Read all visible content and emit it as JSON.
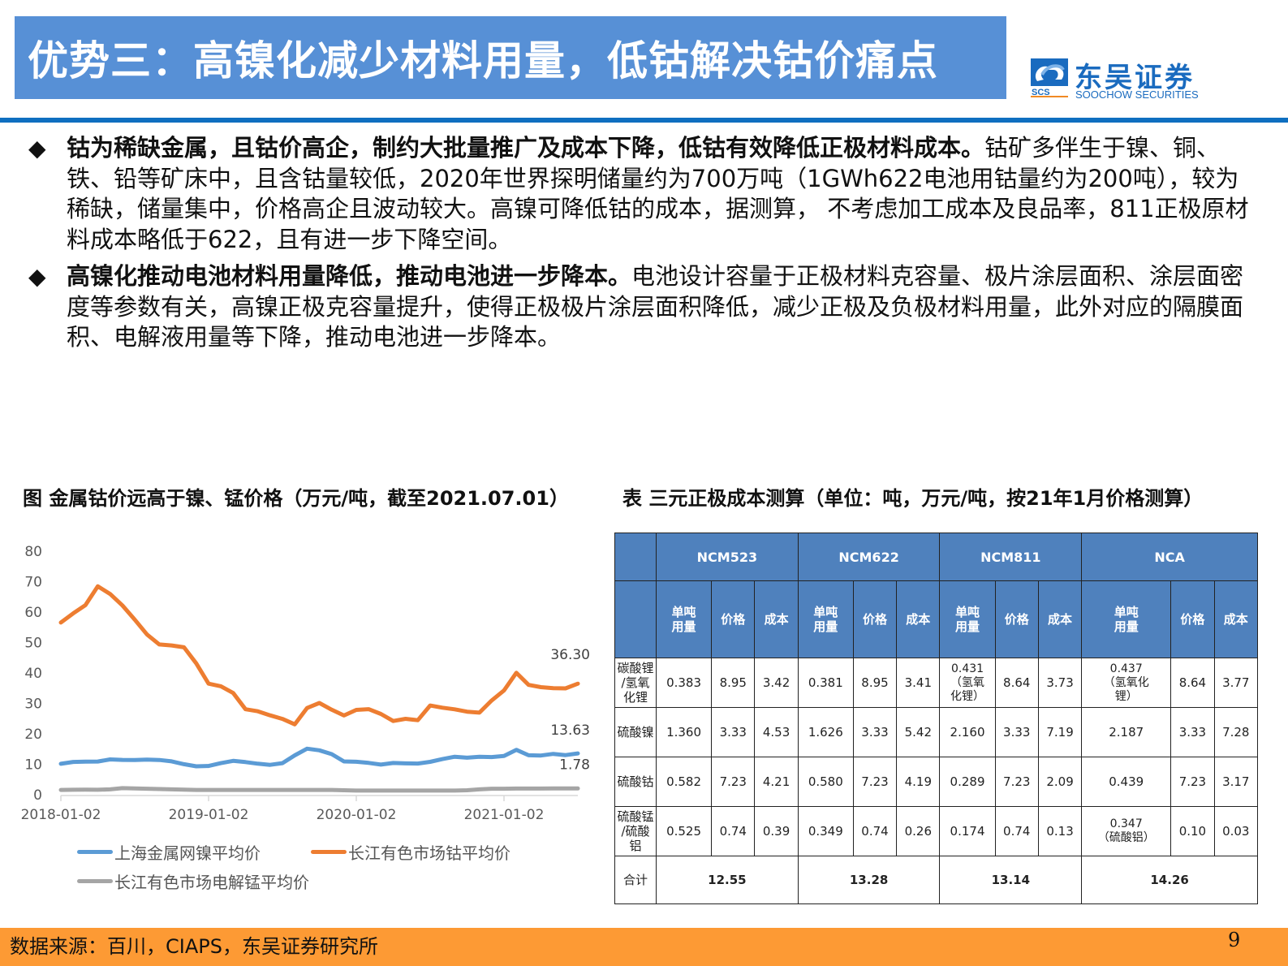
{
  "header": {
    "title": "优势三：高镍化减少材料用量，低钴解决钴价痛点",
    "logo": {
      "cn": "东吴证券",
      "en": "SOOCHOW SECURITIES",
      "mark": "SCS",
      "icon": "soochow-logo-icon"
    }
  },
  "bullets": [
    {
      "icon": "diamond-bullet-icon",
      "bold": "钴为稀缺金属，且钴价高企，制约大批量推广及成本下降，低钴有效降低正极材料成本。",
      "text": "钴矿多伴生于镍、铜、铁、铅等矿床中，且含钴量较低，2020年世界探明储量约为700万吨（1GWh622电池用钴量约为200吨），较为稀缺，储量集中，价格高企且波动较大。高镍可降低钴的成本，据测算， 不考虑加工成本及良品率，811正极原材料成本略低于622，且有进一步下降空间。"
    },
    {
      "icon": "diamond-bullet-icon",
      "bold": "高镍化推动电池材料用量降低，推动电池进一步降本。",
      "text": "电池设计容量于正极材料克容量、极片涂层面积、涂层面密度等参数有关，高镍正极克容量提升，使得正极极片涂层面积降低，减少正极及负极材料用量，此外对应的隔膜面积、电解液用量等下降，推动电池进一步降本。"
    }
  ],
  "figure_caption": "图  金属钴价远高于镍、锰价格（万元/吨，截至2021.07.01）",
  "table_caption": "表 三元正极成本测算（单位：吨，万元/吨，按21年1月价格测算）",
  "chart_data": {
    "type": "line",
    "title": "金属钴价远高于镍、锰价格（万元/吨，截至2021.07.01）",
    "xlabel": "",
    "ylabel": "",
    "ylim": [
      0,
      80
    ],
    "yticks": [
      "0",
      "10",
      "20",
      "30",
      "40",
      "50",
      "60",
      "70",
      "80"
    ],
    "xticks": [
      "2018-01-02",
      "2019-01-02",
      "2020-01-02",
      "2021-01-02"
    ],
    "grid": false,
    "legend_position": "bottom",
    "x": [
      "2018-01",
      "2018-02",
      "2018-03",
      "2018-04",
      "2018-05",
      "2018-06",
      "2018-07",
      "2018-08",
      "2018-09",
      "2018-10",
      "2018-11",
      "2018-12",
      "2019-01",
      "2019-02",
      "2019-03",
      "2019-04",
      "2019-05",
      "2019-06",
      "2019-07",
      "2019-08",
      "2019-09",
      "2019-10",
      "2019-11",
      "2019-12",
      "2020-01",
      "2020-02",
      "2020-03",
      "2020-04",
      "2020-05",
      "2020-06",
      "2020-07",
      "2020-08",
      "2020-09",
      "2020-10",
      "2020-11",
      "2020-12",
      "2021-01",
      "2021-02",
      "2021-03",
      "2021-04",
      "2021-05",
      "2021-06",
      "2021-07"
    ],
    "series": [
      {
        "name": "上海金属网镍平均价",
        "color": "#5b9bd5",
        "values": [
          9.9,
          10.2,
          10.3,
          10.6,
          11.6,
          11.5,
          11.2,
          11.0,
          10.8,
          10.6,
          10.0,
          9.4,
          9.3,
          9.9,
          10.5,
          10.3,
          10.1,
          9.9,
          10.3,
          12.5,
          14.5,
          14.1,
          13.2,
          11.0,
          10.8,
          10.1,
          9.3,
          9.9,
          10.1,
          10.3,
          10.8,
          11.4,
          11.9,
          11.6,
          12.2,
          12.4,
          12.8,
          14.5,
          12.4,
          12.3,
          13.1,
          13.0,
          13.63
        ],
        "end_label": "13.63"
      },
      {
        "name": "长江有色市场钴平均价",
        "color": "#ed7d31",
        "values": [
          56,
          59,
          62,
          68.5,
          66,
          62,
          57,
          52,
          49,
          49,
          48.5,
          43,
          36,
          35,
          33,
          28,
          27.5,
          26,
          24.5,
          22.5,
          28,
          30,
          28,
          26,
          27.5,
          27.5,
          26,
          24,
          25,
          24.5,
          29,
          28,
          27.5,
          27,
          27,
          31,
          34,
          39.5,
          35.5,
          35,
          35,
          35,
          36.3
        ],
        "end_label": "36.30"
      },
      {
        "name": "长江有色市场电解锰平均价",
        "color": "#a5a5a5",
        "values": [
          1.3,
          1.35,
          1.4,
          1.35,
          1.5,
          1.9,
          1.8,
          1.7,
          1.6,
          1.5,
          1.4,
          1.3,
          1.3,
          1.3,
          1.3,
          1.3,
          1.3,
          1.3,
          1.3,
          1.3,
          1.3,
          1.3,
          1.3,
          1.2,
          1.1,
          1.1,
          1.1,
          1.1,
          1.1,
          1.1,
          1.1,
          1.1,
          1.1,
          1.2,
          1.5,
          1.7,
          1.7,
          1.75,
          1.75,
          1.75,
          1.78,
          1.78,
          1.78
        ],
        "end_label": "1.78"
      }
    ]
  },
  "table": {
    "groups": [
      "NCM523",
      "NCM622",
      "NCM811",
      "NCA"
    ],
    "subheaders": [
      "单吨\n用量",
      "价格",
      "成本"
    ],
    "rows": [
      {
        "label": "碳酸锂\n/氢氧\n化锂",
        "cells": [
          "0.383",
          "8.95",
          "3.42",
          "0.381",
          "8.95",
          "3.41",
          "0.431\n（氢氧\n化锂）",
          "8.64",
          "3.73",
          "0.437\n（氢氧化\n锂）",
          "8.64",
          "3.77"
        ]
      },
      {
        "label": "硫酸镍",
        "cells": [
          "1.360",
          "3.33",
          "4.53",
          "1.626",
          "3.33",
          "5.42",
          "2.160",
          "3.33",
          "7.19",
          "2.187",
          "3.33",
          "7.28"
        ]
      },
      {
        "label": "硫酸钴",
        "cells": [
          "0.582",
          "7.23",
          "4.21",
          "0.580",
          "7.23",
          "4.19",
          "0.289",
          "7.23",
          "2.09",
          "0.439",
          "7.23",
          "3.17"
        ]
      },
      {
        "label": "硫酸锰\n/硫酸\n铝",
        "cells": [
          "0.525",
          "0.74",
          "0.39",
          "0.349",
          "0.74",
          "0.26",
          "0.174",
          "0.74",
          "0.13",
          "0.347\n（硫酸铝）",
          "0.10",
          "0.03"
        ]
      }
    ],
    "total": {
      "label": "合计",
      "values": [
        "12.55",
        "13.28",
        "13.14",
        "14.26"
      ]
    }
  },
  "footer": {
    "source": "数据来源：百川，CIAPS，东吴证券研究所",
    "page": "9"
  },
  "colors": {
    "title_bg": "#5790d6",
    "rule": "#0f6fc0",
    "table_header": "#4f81bd",
    "footer_bg": "#fd9a34",
    "logo_blue": "#1a6bbf"
  }
}
